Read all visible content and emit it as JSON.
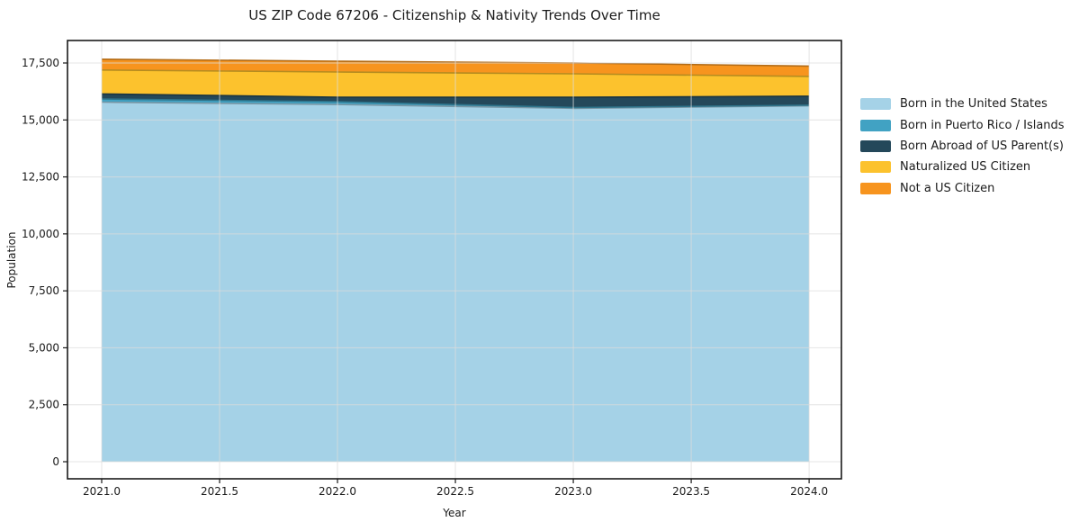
{
  "chart_data": {
    "type": "area",
    "stacked": true,
    "title": "US ZIP Code 67206 - Citizenship & Nativity Trends Over Time",
    "xlabel": "Year",
    "ylabel": "Population",
    "x": [
      2021,
      2022,
      2023,
      2024
    ],
    "series": [
      {
        "name": "Born in the United States",
        "color": "#A5D2E7",
        "values": [
          15780,
          15680,
          15510,
          15620
        ]
      },
      {
        "name": "Born in Puerto Rico / Islands",
        "color": "#41A2C3",
        "values": [
          140,
          120,
          35,
          25
        ]
      },
      {
        "name": "Born Abroad of US Parent(s)",
        "color": "#24485A",
        "values": [
          220,
          200,
          450,
          395
        ]
      },
      {
        "name": "Naturalized US Citizen",
        "color": "#FCC22D",
        "values": [
          1050,
          1105,
          1030,
          870
        ]
      },
      {
        "name": "Not a US Citizen",
        "color": "#F7941E",
        "values": [
          475,
          475,
          475,
          455
        ]
      }
    ],
    "totals": [
      17665,
      17580,
      17500,
      17365
    ],
    "axes": {
      "x_min": 2020.855,
      "x_max": 2024.137,
      "y_min": -750,
      "y_max": 18487
    },
    "xticks": {
      "values": [
        2021,
        2021.5,
        2022,
        2022.5,
        2023,
        2023.5,
        2024
      ],
      "labels": [
        "2021.0",
        "2021.5",
        "2022.0",
        "2022.5",
        "2023.0",
        "2023.5",
        "2024.0"
      ]
    },
    "yticks": {
      "values": [
        0,
        2500,
        5000,
        7500,
        10000,
        12500,
        15000,
        17500
      ],
      "labels": [
        "0",
        "2,500",
        "5,000",
        "7,500",
        "10,000",
        "12,500",
        "15,000",
        "17,500"
      ]
    },
    "legend_position": "right-outside",
    "grid": true,
    "colors": {
      "grid": "#dcdcdc",
      "frame": "#1a1a1a",
      "background": "#ffffff"
    }
  }
}
